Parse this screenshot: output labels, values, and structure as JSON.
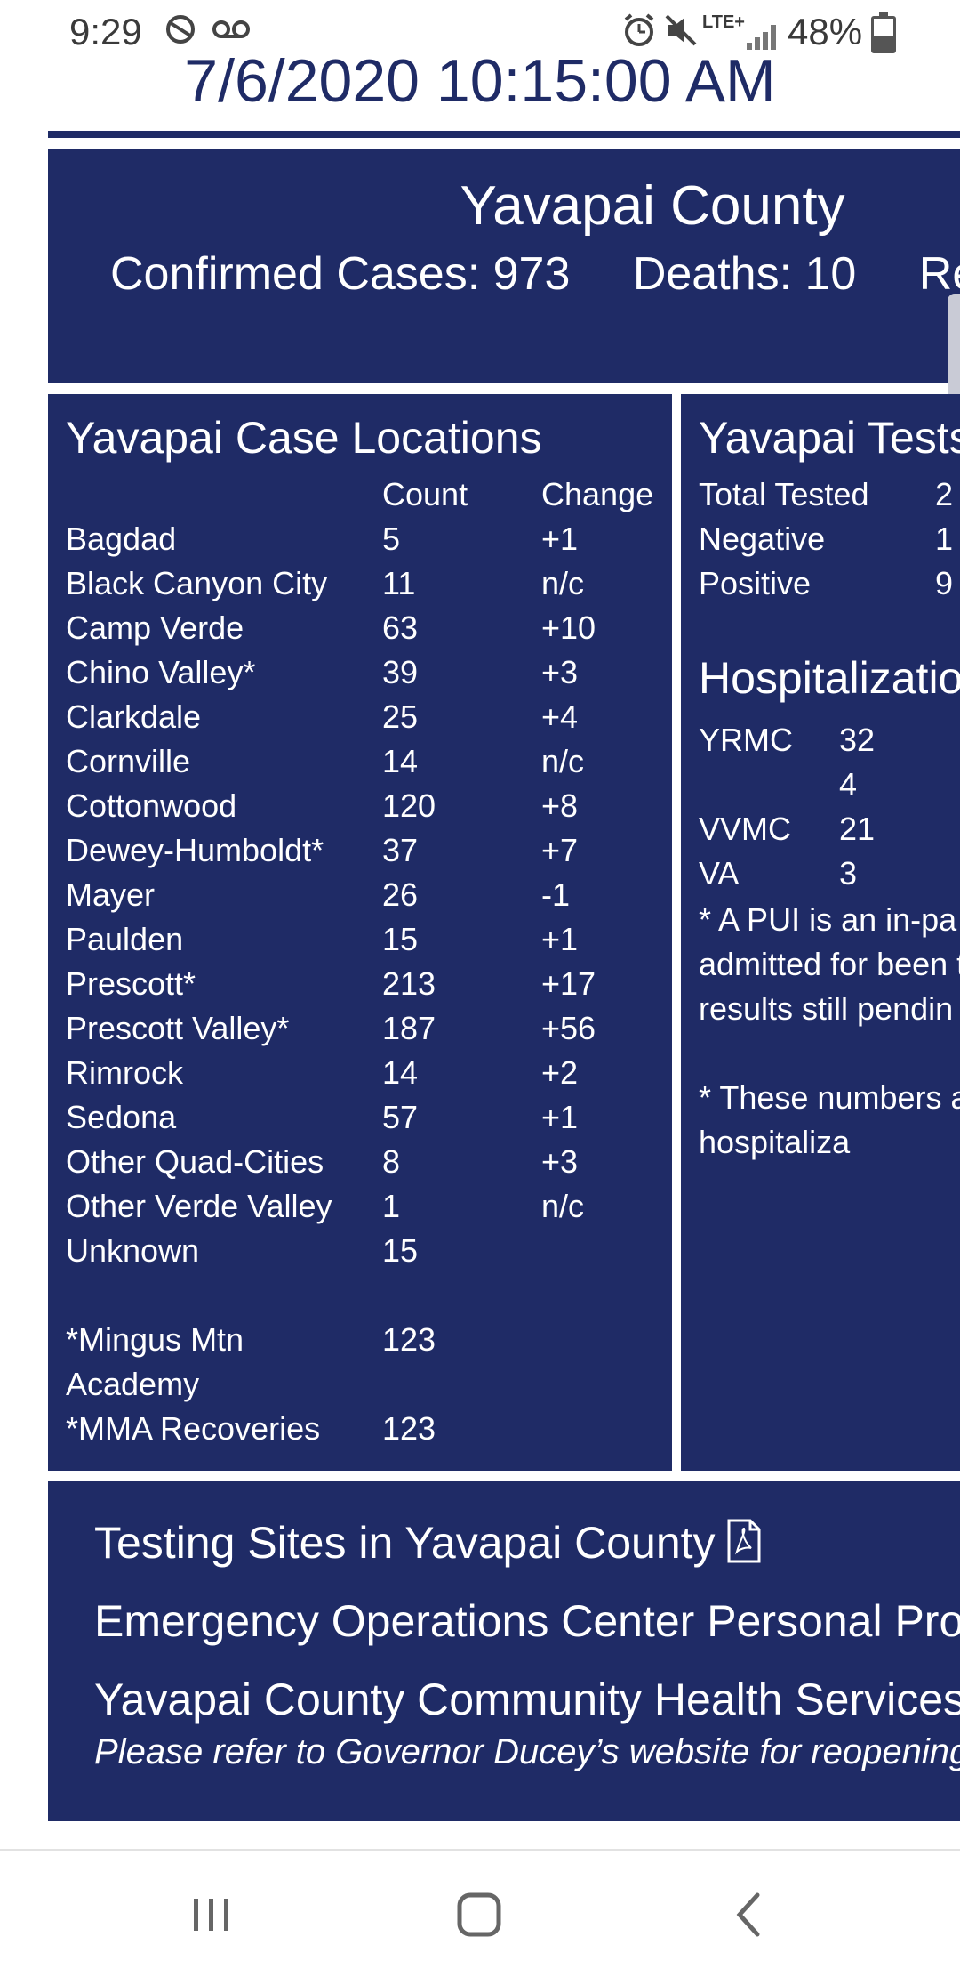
{
  "status_bar": {
    "time": "9:29",
    "network": "LTE+",
    "battery_text": "48%",
    "battery_level": 0.48,
    "icons": [
      "sync-icon",
      "voicemail-icon",
      "alarm-icon",
      "mute-icon",
      "signal-icon",
      "battery-icon"
    ]
  },
  "header": {
    "datetime": "7/6/2020 10:15:00 AM"
  },
  "summary": {
    "county": "Yavapai County",
    "confirmed": "Confirmed Cases: 973",
    "deaths": "Deaths: 10",
    "recovered_partial": "Reco"
  },
  "locations": {
    "title": "Yavapai Case Locations",
    "headers": [
      "",
      "Count",
      "Change"
    ],
    "rows": [
      [
        "Bagdad",
        "5",
        "+1"
      ],
      [
        "Black Canyon City",
        "11",
        "n/c"
      ],
      [
        "Camp Verde",
        "63",
        "+10"
      ],
      [
        "Chino Valley*",
        "39",
        "+3"
      ],
      [
        "Clarkdale",
        "25",
        "+4"
      ],
      [
        "Cornville",
        "14",
        "n/c"
      ],
      [
        "Cottonwood",
        "120",
        "+8"
      ],
      [
        "Dewey-Humboldt*",
        "37",
        "+7"
      ],
      [
        "Mayer",
        "26",
        "-1"
      ],
      [
        "Paulden",
        "15",
        "+1"
      ],
      [
        "Prescott*",
        "213",
        "+17"
      ],
      [
        "Prescott Valley*",
        "187",
        "+56"
      ],
      [
        "Rimrock",
        "14",
        "+2"
      ],
      [
        "Sedona",
        "57",
        "+1"
      ],
      [
        "Other Quad-Cities",
        "8",
        "+3"
      ],
      [
        "Other Verde Valley",
        "1",
        "n/c"
      ],
      [
        "Unknown",
        "15",
        ""
      ]
    ],
    "footnotes": [
      [
        "*Mingus Mtn Academy",
        "123"
      ],
      [
        "*MMA Recoveries",
        "123"
      ]
    ]
  },
  "tests": {
    "title": "Yavapai Tests",
    "rows": [
      [
        "Total Tested",
        "2"
      ],
      [
        "Negative",
        "1"
      ],
      [
        "Positive",
        "9"
      ]
    ],
    "hosp_title": "Hospitalizatio",
    "hosp_rows": [
      [
        "YRMC",
        "32"
      ],
      [
        "",
        "4"
      ],
      [
        "VVMC",
        "21"
      ],
      [
        "VA",
        "3"
      ]
    ],
    "note1": "* A PUI is an in-pa been admitted for been tested for CO results still pendin",
    "note2": "* These numbers a related hospitaliza"
  },
  "links": {
    "testing_sites": "Testing Sites in Yavapai County",
    "eoc": "Emergency Operations Center Personal Protec",
    "health_services": "Yavapai County Community Health Services' C",
    "reopening": "Please refer to Governor Ducey’s website for reopening ti"
  },
  "colors": {
    "panel": "#1f2b66",
    "text": "#ffffff"
  }
}
